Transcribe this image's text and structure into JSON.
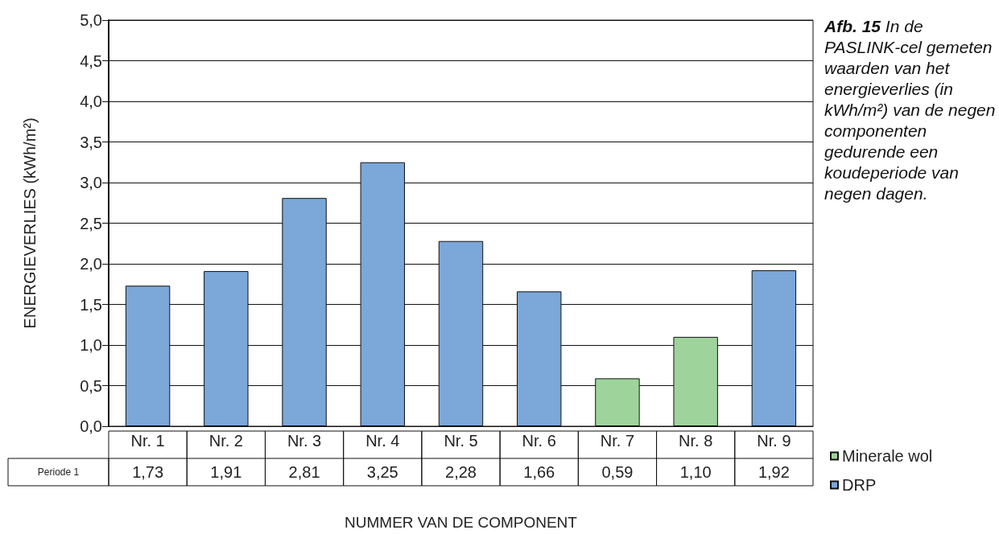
{
  "chart_data": {
    "type": "bar",
    "ylabel": "ENERGIEVERLIES (kWh/m²)",
    "xlabel": "NUMMER VAN DE COMPONENT",
    "categories": [
      "Nr. 1",
      "Nr. 2",
      "Nr. 3",
      "Nr. 4",
      "Nr. 5",
      "Nr. 6",
      "Nr. 7",
      "Nr. 8",
      "Nr. 9"
    ],
    "series": [
      {
        "name": "Minerale wol",
        "color": "#9ed49b",
        "values": [
          null,
          null,
          null,
          null,
          null,
          null,
          0.59,
          1.1,
          null
        ],
        "value_labels": [
          null,
          null,
          null,
          null,
          null,
          null,
          "0,59",
          "1,10",
          null
        ]
      },
      {
        "name": "DRP",
        "color": "#7ba7d9",
        "values": [
          1.73,
          1.91,
          2.81,
          3.25,
          2.28,
          1.66,
          null,
          null,
          1.92
        ],
        "value_labels": [
          "1,73",
          "1,91",
          "2,81",
          "3,25",
          "2,28",
          "1,66",
          null,
          null,
          "1,92"
        ]
      }
    ],
    "stacked": true,
    "ylim": [
      0,
      5
    ],
    "yticks": [
      {
        "value": 0,
        "label": "0,0"
      },
      {
        "value": 0.5,
        "label": "0,5"
      },
      {
        "value": 1,
        "label": "1,0"
      },
      {
        "value": 1.5,
        "label": "1,5"
      },
      {
        "value": 2,
        "label": "2,0"
      },
      {
        "value": 2.5,
        "label": "2,5"
      },
      {
        "value": 3,
        "label": "3,0"
      },
      {
        "value": 3.5,
        "label": "3,5"
      },
      {
        "value": 4,
        "label": "4,0"
      },
      {
        "value": 4.5,
        "label": "4,5"
      },
      {
        "value": 5,
        "label": "5,0"
      }
    ],
    "grid": "y",
    "legend": "bottom right",
    "annotations": [
      "Periode 1",
      "Afb. 15",
      "In de PASLINK-cel gemeten waarden van het energieverlies (in kWh/m²) van de negen componenten gedurende een koudeperiode van negen dagen."
    ]
  }
}
